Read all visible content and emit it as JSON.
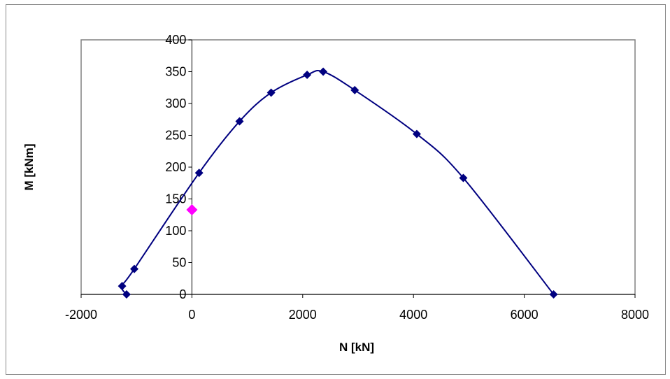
{
  "chart_data": {
    "type": "scatter",
    "xlabel": "N [kN]",
    "ylabel": "M [kNm]",
    "xlim": [
      -2000,
      8000
    ],
    "ylim": [
      0,
      400
    ],
    "xticks": [
      -2000,
      0,
      2000,
      4000,
      6000,
      8000
    ],
    "yticks": [
      0,
      50,
      100,
      150,
      200,
      250,
      300,
      350,
      400
    ],
    "xtick_labels": [
      "-2000",
      "0",
      "2000",
      "4000",
      "6000",
      "8000"
    ],
    "ytick_labels": [
      "0",
      "50",
      "100",
      "150",
      "200",
      "250",
      "300",
      "350",
      "400"
    ],
    "grid": false,
    "legend": "none",
    "series": [
      {
        "style": "smooth line with diamond markers",
        "color": "#000080",
        "points": [
          {
            "x": -1180,
            "y": 0
          },
          {
            "x": -1260,
            "y": 13
          },
          {
            "x": -1040,
            "y": 40
          },
          {
            "x": 130,
            "y": 191
          },
          {
            "x": 860,
            "y": 272
          },
          {
            "x": 1430,
            "y": 317
          },
          {
            "x": 2080,
            "y": 345
          },
          {
            "x": 2370,
            "y": 350
          },
          {
            "x": 2940,
            "y": 321
          },
          {
            "x": 4060,
            "y": 252
          },
          {
            "x": 4900,
            "y": 183
          },
          {
            "x": 6530,
            "y": 0
          }
        ]
      },
      {
        "style": "single diamond marker",
        "color": "#ff00ff",
        "points": [
          {
            "x": 0,
            "y": 133
          }
        ]
      }
    ]
  }
}
